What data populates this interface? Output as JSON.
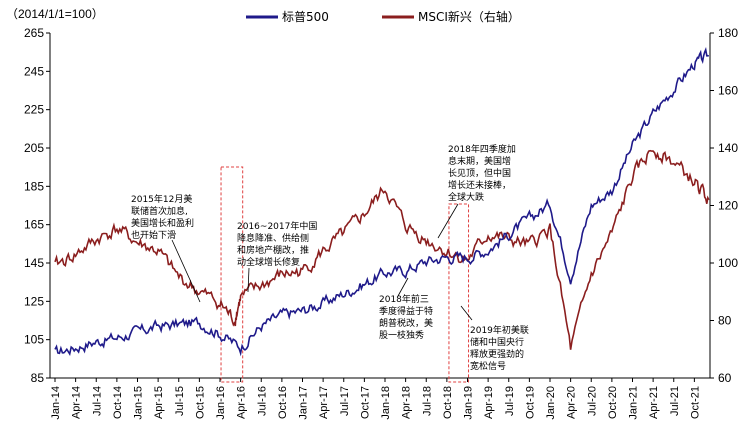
{
  "chart_data": {
    "type": "line",
    "unit_label": "（2014/1/1=100）",
    "legend": [
      "标普500",
      "MSCI新兴（右轴）"
    ],
    "colors": {
      "sp500": "#1f1a8a",
      "msci": "#8b1e1e",
      "box": "#e04040"
    },
    "left_axis": {
      "min": 85,
      "max": 265,
      "ticks": [
        85,
        105,
        125,
        145,
        165,
        185,
        205,
        225,
        245,
        265
      ]
    },
    "right_axis": {
      "min": 60,
      "max": 180,
      "ticks": [
        60,
        80,
        100,
        120,
        140,
        160,
        180
      ]
    },
    "x_ticks": [
      "Jan-14",
      "Apr-14",
      "Jul-14",
      "Oct-14",
      "Jan-15",
      "Apr-15",
      "Jul-15",
      "Oct-15",
      "Jan-16",
      "Apr-16",
      "Jul-16",
      "Oct-16",
      "Jan-17",
      "Apr-17",
      "Jul-17",
      "Oct-17",
      "Jan-18",
      "Apr-18",
      "Jul-18",
      "Oct-18",
      "Jan-19",
      "Apr-19",
      "Jul-19",
      "Oct-19",
      "Jan-20",
      "Apr-20",
      "Jul-20",
      "Oct-20",
      "Jan-21",
      "Apr-21",
      "Jul-21",
      "Oct-21"
    ],
    "series": [
      {
        "name": "标普500",
        "axis": "left",
        "x": [
          0,
          1,
          2,
          3,
          4,
          5,
          6,
          7,
          8,
          9,
          10,
          11,
          12,
          13,
          14,
          15,
          16,
          17,
          18,
          19,
          20,
          21,
          22,
          23,
          24,
          25,
          26,
          27,
          28,
          29,
          30,
          31,
          31.7
        ],
        "values": [
          98,
          101,
          104,
          106,
          109,
          112,
          113,
          114,
          108,
          101,
          112,
          118,
          120,
          124,
          129,
          134,
          140,
          141,
          146,
          148,
          148,
          152,
          160,
          168,
          176,
          138,
          175,
          183,
          206,
          223,
          236,
          249,
          253
        ]
      },
      {
        "name": "MSCI新兴（右轴）",
        "axis": "right",
        "x": [
          0,
          1,
          2,
          3,
          4,
          5,
          6,
          7,
          8,
          8.7,
          9,
          10,
          11,
          12,
          13,
          14,
          15,
          16,
          17,
          18,
          19,
          20,
          21,
          22,
          23,
          24,
          25,
          26,
          27,
          28,
          29,
          30,
          31,
          31.7
        ],
        "values": [
          99,
          103,
          108,
          112,
          107,
          104,
          95,
          90,
          86,
          80,
          88,
          92,
          96,
          97,
          104,
          110,
          117,
          126,
          113,
          108,
          104,
          101,
          110,
          108,
          106,
          112,
          70,
          96,
          110,
          130,
          140,
          135,
          128,
          122
        ]
      }
    ],
    "annotations": [
      {
        "lines": [
          "2015年12月美",
          "联储首次加息,",
          "美国增长和盈利",
          "也开始下滑"
        ]
      },
      {
        "lines": [
          "2016~2017年中国",
          "降息降准、供给侧",
          "和房地产棚改，推",
          "动全球增长修复"
        ]
      },
      {
        "lines": [
          "2018年前三",
          "季度得益于特",
          "朗普税改，美",
          "股一枝独秀"
        ]
      },
      {
        "lines": [
          "2018年四季度加",
          "息末期，美国增",
          "长见顶，但中国",
          "增长还未接棒，",
          "全球大跌"
        ]
      },
      {
        "lines": [
          "2019年初美联",
          "储和中国央行",
          "释放更强劲的",
          "宽松信号"
        ]
      }
    ],
    "highlight_periods": [
      {
        "from": 8.05,
        "to": 9.1
      },
      {
        "from": 19.1,
        "to": 20.05
      }
    ]
  }
}
